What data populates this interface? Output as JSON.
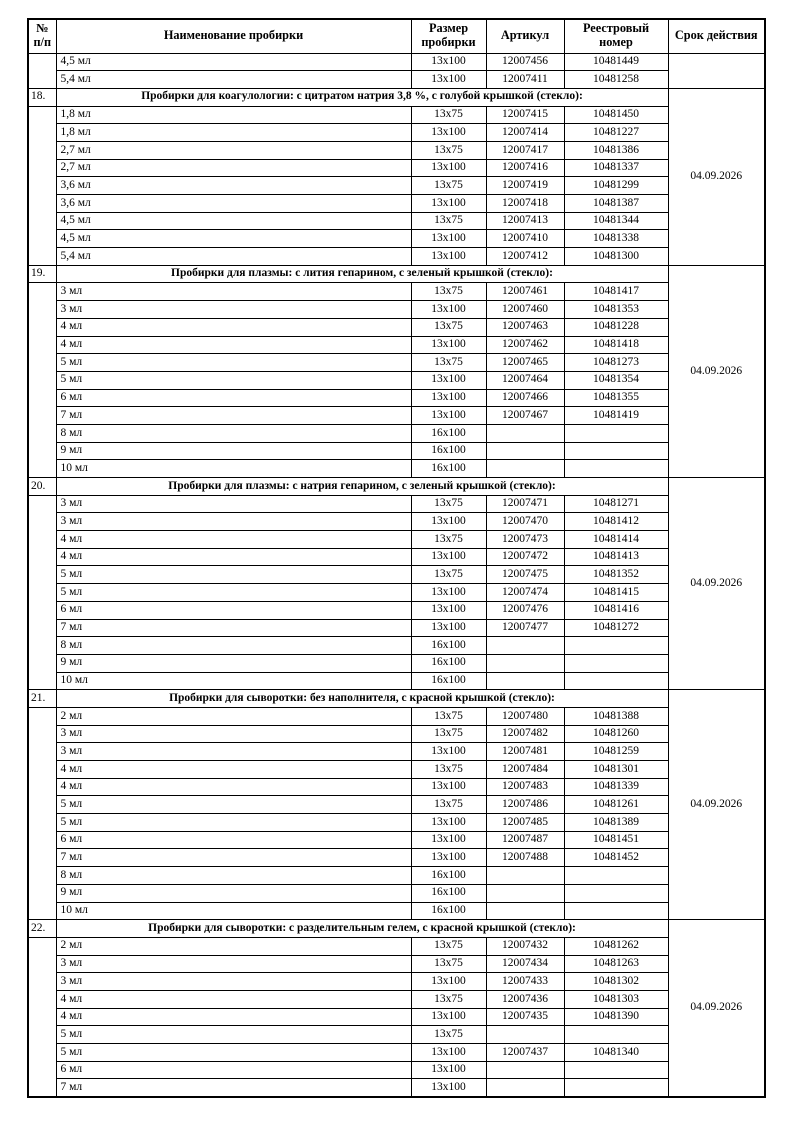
{
  "page": {
    "background": "#ffffff",
    "text_color": "#000000",
    "border_color": "#000000"
  },
  "table": {
    "col_headers": [
      "№ п/п",
      "Наименование пробирки",
      "Размер пробирки",
      "Артикул",
      "Реестровый номер",
      "Срок действия"
    ],
    "leading_group": {
      "number": "",
      "validity": "",
      "rows": [
        [
          "4,5 мл",
          "13x100",
          "12007456",
          "10481449"
        ],
        [
          "5,4 мл",
          "13x100",
          "12007411",
          "10481258"
        ]
      ]
    },
    "sections": [
      {
        "number": "18.",
        "title": "Пробирки для коагулологии: с цитратом натрия 3,8 %, с голубой крышкой (стекло):",
        "validity": "04.09.2026",
        "rows": [
          [
            "1,8 мл",
            "13x75",
            "12007415",
            "10481450"
          ],
          [
            "1,8 мл",
            "13x100",
            "12007414",
            "10481227"
          ],
          [
            "2,7 мл",
            "13x75",
            "12007417",
            "10481386"
          ],
          [
            "2,7 мл",
            "13x100",
            "12007416",
            "10481337"
          ],
          [
            "3,6 мл",
            "13x75",
            "12007419",
            "10481299"
          ],
          [
            "3,6 мл",
            "13x100",
            "12007418",
            "10481387"
          ],
          [
            "4,5 мл",
            "13x75",
            "12007413",
            "10481344"
          ],
          [
            "4,5 мл",
            "13x100",
            "12007410",
            "10481338"
          ],
          [
            "5,4 мл",
            "13x100",
            "12007412",
            "10481300"
          ]
        ]
      },
      {
        "number": "19.",
        "title": "Пробирки для плазмы: с лития гепарином, с зеленый крышкой (стекло):",
        "validity": "04.09.2026",
        "rows": [
          [
            "3 мл",
            "13x75",
            "12007461",
            "10481417"
          ],
          [
            "3 мл",
            "13x100",
            "12007460",
            "10481353"
          ],
          [
            "4 мл",
            "13x75",
            "12007463",
            "10481228"
          ],
          [
            "4 мл",
            "13x100",
            "12007462",
            "10481418"
          ],
          [
            "5 мл",
            "13x75",
            "12007465",
            "10481273"
          ],
          [
            "5 мл",
            "13x100",
            "12007464",
            "10481354"
          ],
          [
            "6 мл",
            "13x100",
            "12007466",
            "10481355"
          ],
          [
            "7 мл",
            "13x100",
            "12007467",
            "10481419"
          ],
          [
            "8 мл",
            "16x100",
            "",
            ""
          ],
          [
            "9 мл",
            "16x100",
            "",
            ""
          ],
          [
            "10 мл",
            "16x100",
            "",
            ""
          ]
        ]
      },
      {
        "number": "20.",
        "title": "Пробирки для плазмы: с натрия гепарином, с зеленый крышкой (стекло):",
        "validity": "04.09.2026",
        "rows": [
          [
            "3 мл",
            "13x75",
            "12007471",
            "10481271"
          ],
          [
            "3 мл",
            "13x100",
            "12007470",
            "10481412"
          ],
          [
            "4 мл",
            "13x75",
            "12007473",
            "10481414"
          ],
          [
            "4 мл",
            "13x100",
            "12007472",
            "10481413"
          ],
          [
            "5 мл",
            "13x75",
            "12007475",
            "10481352"
          ],
          [
            "5 мл",
            "13x100",
            "12007474",
            "10481415"
          ],
          [
            "6 мл",
            "13x100",
            "12007476",
            "10481416"
          ],
          [
            "7 мл",
            "13x100",
            "12007477",
            "10481272"
          ],
          [
            "8 мл",
            "16x100",
            "",
            ""
          ],
          [
            "9 мл",
            "16x100",
            "",
            ""
          ],
          [
            "10 мл",
            "16x100",
            "",
            ""
          ]
        ]
      },
      {
        "number": "21.",
        "title": "Пробирки для сыворотки: без наполнителя, с красной крышкой (стекло):",
        "validity": "04.09.2026",
        "rows": [
          [
            "2 мл",
            "13x75",
            "12007480",
            "10481388"
          ],
          [
            "3 мл",
            "13x75",
            "12007482",
            "10481260"
          ],
          [
            "3 мл",
            "13x100",
            "12007481",
            "10481259"
          ],
          [
            "4 мл",
            "13x75",
            "12007484",
            "10481301"
          ],
          [
            "4 мл",
            "13x100",
            "12007483",
            "10481339"
          ],
          [
            "5 мл",
            "13x75",
            "12007486",
            "10481261"
          ],
          [
            "5 мл",
            "13x100",
            "12007485",
            "10481389"
          ],
          [
            "6 мл",
            "13x100",
            "12007487",
            "10481451"
          ],
          [
            "7 мл",
            "13x100",
            "12007488",
            "10481452"
          ],
          [
            "8 мл",
            "16x100",
            "",
            ""
          ],
          [
            "9 мл",
            "16x100",
            "",
            ""
          ],
          [
            "10 мл",
            "16x100",
            "",
            ""
          ]
        ]
      },
      {
        "number": "22.",
        "title": "Пробирки для сыворотки: с разделительным гелем, с красной крышкой (стекло):",
        "validity": "04.09.2026",
        "rows": [
          [
            "2 мл",
            "13x75",
            "12007432",
            "10481262"
          ],
          [
            "3 мл",
            "13x75",
            "12007434",
            "10481263"
          ],
          [
            "3 мл",
            "13x100",
            "12007433",
            "10481302"
          ],
          [
            "4 мл",
            "13x75",
            "12007436",
            "10481303"
          ],
          [
            "4 мл",
            "13x100",
            "12007435",
            "10481390"
          ],
          [
            "5 мл",
            "13x75",
            "",
            ""
          ],
          [
            "5 мл",
            "13x100",
            "12007437",
            "10481340"
          ],
          [
            "6 мл",
            "13x100",
            "",
            ""
          ],
          [
            "7 мл",
            "13x100",
            "",
            ""
          ]
        ]
      }
    ]
  }
}
